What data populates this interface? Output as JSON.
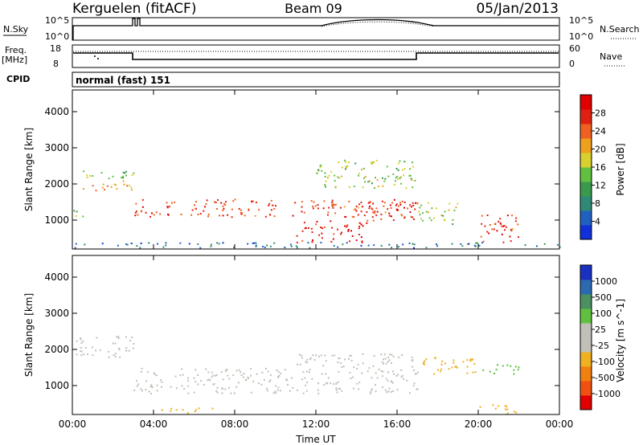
{
  "header": {
    "station": "Kerguelen (fitACF)",
    "beam": "Beam 09",
    "date": "05/Jan/2013"
  },
  "top_panels": {
    "nsky": {
      "label": "N.Sky",
      "ticks": [
        "10^5",
        "10^0"
      ]
    },
    "nsearch": {
      "label": "N.Search",
      "ticks": [
        "10^5",
        "10^0"
      ]
    },
    "freq": {
      "label_top": "Freq.",
      "label_unit": "[MHz]",
      "ticks": [
        "18",
        "8"
      ]
    },
    "nave": {
      "label": "Nave",
      "ticks": [
        "60",
        "0"
      ]
    },
    "cpid": {
      "label": "CPID",
      "value": "normal (fast) 151"
    }
  },
  "colors": {
    "power_scale": [
      "#1030d8",
      "#2060c0",
      "#2e8a74",
      "#3a9a4c",
      "#60c040",
      "#d8d030",
      "#f0a020",
      "#f06020",
      "#e02010",
      "#e00000"
    ],
    "velocity_scale": [
      "#1a30c0",
      "#2b6ab0",
      "#4a9060",
      "#60c040",
      "#c0c0b8",
      "#c0c0b8",
      "#f0b020",
      "#f08010",
      "#f05010",
      "#e00000"
    ],
    "ground_scatter": "#c0c0b8"
  },
  "chart_data": [
    {
      "type": "heatmap",
      "title": "",
      "xlabel": "",
      "ylabel": "Slant Range [km]",
      "x_ticks": [
        "00:00",
        "04:00",
        "08:00",
        "12:00",
        "16:00",
        "20:00",
        "00:00"
      ],
      "y_ticks": [
        "1000",
        "2000",
        "3000",
        "4000"
      ],
      "xlim_hours": [
        0,
        24
      ],
      "ylim_km": [
        200,
        4600
      ],
      "colorbar": {
        "label": "Power [dB]",
        "ticks": [
          "4",
          "8",
          "12",
          "16",
          "20",
          "24",
          "28"
        ]
      },
      "echo_bands_hours_km_db": [
        [
          0.0,
          3.0,
          2150,
          2400,
          14
        ],
        [
          0.5,
          3.0,
          1800,
          2100,
          22
        ],
        [
          0.0,
          0.6,
          1000,
          1300,
          14
        ],
        [
          3.0,
          17.0,
          1100,
          1600,
          26
        ],
        [
          11.0,
          14.5,
          400,
          1000,
          28
        ],
        [
          14.5,
          17.0,
          1000,
          1600,
          28
        ],
        [
          17.0,
          19.0,
          900,
          1500,
          16
        ],
        [
          20.0,
          22.0,
          400,
          1200,
          26
        ],
        [
          12.0,
          17.0,
          1900,
          2700,
          16
        ],
        [
          0.0,
          24.0,
          250,
          400,
          6
        ]
      ]
    },
    {
      "type": "heatmap",
      "title": "",
      "xlabel": "Time UT",
      "ylabel": "Slant Range [km]",
      "x_ticks": [
        "00:00",
        "04:00",
        "08:00",
        "12:00",
        "16:00",
        "20:00",
        "00:00"
      ],
      "y_ticks": [
        "1000",
        "2000",
        "3000",
        "4000"
      ],
      "xlim_hours": [
        0,
        24
      ],
      "ylim_km": [
        200,
        4600
      ],
      "colorbar": {
        "label": "Velocity [m s^-1]",
        "ticks": [
          "1000",
          "500",
          "100",
          "25",
          "-25",
          "-100",
          "-500",
          "-1000"
        ]
      },
      "echo_bands_hours_km_mps": [
        [
          0.0,
          3.0,
          1800,
          2400,
          0
        ],
        [
          3.0,
          11.0,
          800,
          1500,
          0
        ],
        [
          11.0,
          17.0,
          800,
          1900,
          0
        ],
        [
          17.0,
          20.0,
          1300,
          1800,
          -100
        ],
        [
          20.0,
          22.0,
          1300,
          1600,
          100
        ],
        [
          4.0,
          7.0,
          250,
          400,
          -100
        ],
        [
          20.0,
          22.0,
          250,
          500,
          -100
        ]
      ]
    }
  ]
}
